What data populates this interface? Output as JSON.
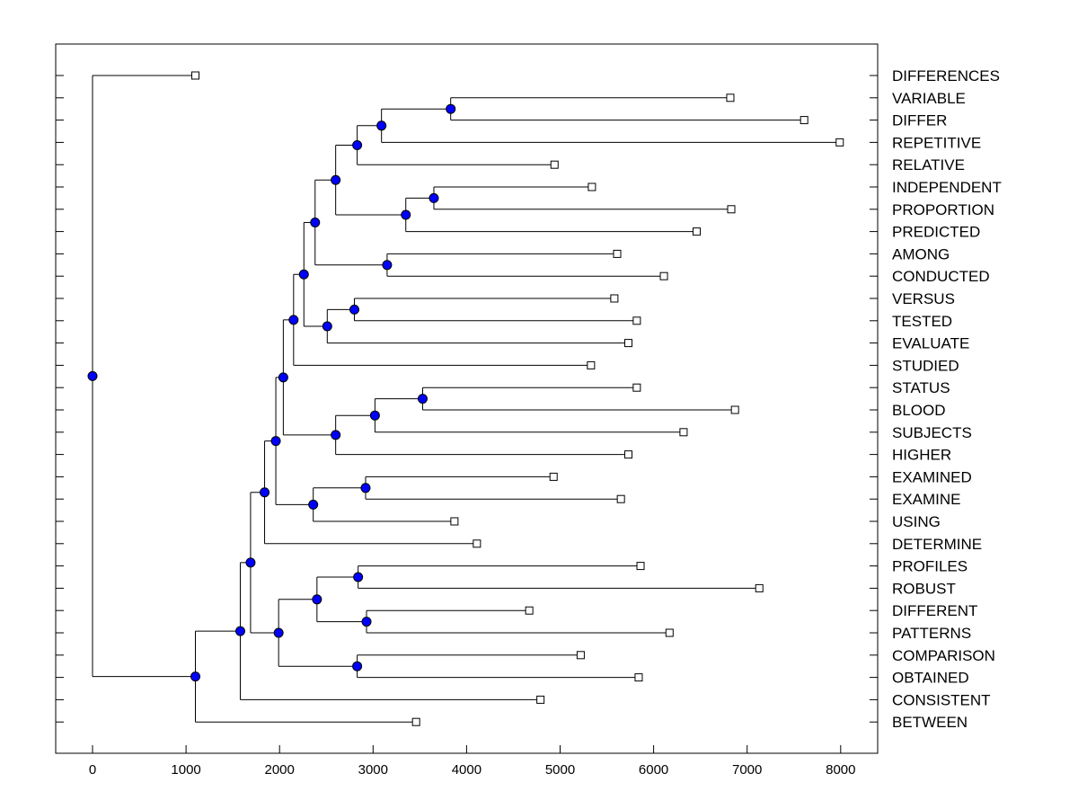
{
  "chart_data": {
    "type": "dendrogram",
    "xlim": [
      -400,
      8400
    ],
    "x_ticks": [
      0,
      1000,
      2000,
      3000,
      4000,
      5000,
      6000,
      7000,
      8000
    ],
    "grid": false,
    "colors": {
      "node": "#0000ff",
      "line": "#000000",
      "leaf_fill": "#ffffff"
    },
    "leaves": [
      {
        "label": "DIFFERENCES",
        "x": 1100
      },
      {
        "label": "VARIABLE",
        "x": 6820
      },
      {
        "label": "DIFFER",
        "x": 7610
      },
      {
        "label": "REPETITIVE",
        "x": 7990
      },
      {
        "label": "RELATIVE",
        "x": 4940
      },
      {
        "label": "INDEPENDENT",
        "x": 5340
      },
      {
        "label": "PROPORTION",
        "x": 6830
      },
      {
        "label": "PREDICTED",
        "x": 6460
      },
      {
        "label": "AMONG",
        "x": 5610
      },
      {
        "label": "CONDUCTED",
        "x": 6110
      },
      {
        "label": "VERSUS",
        "x": 5580
      },
      {
        "label": "TESTED",
        "x": 5820
      },
      {
        "label": "EVALUATE",
        "x": 5730
      },
      {
        "label": "STUDIED",
        "x": 5330
      },
      {
        "label": "STATUS",
        "x": 5820
      },
      {
        "label": "BLOOD",
        "x": 6870
      },
      {
        "label": "SUBJECTS",
        "x": 6320
      },
      {
        "label": "HIGHER",
        "x": 5730
      },
      {
        "label": "EXAMINED",
        "x": 4930
      },
      {
        "label": "EXAMINE",
        "x": 5650
      },
      {
        "label": "USING",
        "x": 3870
      },
      {
        "label": "DETERMINE",
        "x": 4110
      },
      {
        "label": "PROFILES",
        "x": 5860
      },
      {
        "label": "ROBUST",
        "x": 7130
      },
      {
        "label": "DIFFERENT",
        "x": 4670
      },
      {
        "label": "PATTERNS",
        "x": 6170
      },
      {
        "label": "COMPARISON",
        "x": 5220
      },
      {
        "label": "OBTAINED",
        "x": 5840
      },
      {
        "label": "CONSISTENT",
        "x": 4790
      },
      {
        "label": "BETWEEN",
        "x": 3460
      }
    ],
    "merges": [
      {
        "id": "n1",
        "x": 3830,
        "children": [
          "VARIABLE",
          "DIFFER"
        ]
      },
      {
        "id": "n2",
        "x": 3090,
        "children": [
          "n1",
          "REPETITIVE"
        ]
      },
      {
        "id": "n3",
        "x": 2830,
        "children": [
          "n2",
          "RELATIVE"
        ]
      },
      {
        "id": "n4",
        "x": 3650,
        "children": [
          "INDEPENDENT",
          "PROPORTION"
        ]
      },
      {
        "id": "n5",
        "x": 3350,
        "children": [
          "n4",
          "PREDICTED"
        ]
      },
      {
        "id": "n6",
        "x": 2600,
        "children": [
          "n3",
          "n5"
        ]
      },
      {
        "id": "n7",
        "x": 3150,
        "children": [
          "AMONG",
          "CONDUCTED"
        ]
      },
      {
        "id": "n8",
        "x": 2380,
        "children": [
          "n6",
          "n7"
        ]
      },
      {
        "id": "n9",
        "x": 2800,
        "children": [
          "VERSUS",
          "TESTED"
        ]
      },
      {
        "id": "n10",
        "x": 2510,
        "children": [
          "n9",
          "EVALUATE"
        ]
      },
      {
        "id": "n11",
        "x": 2260,
        "children": [
          "n8",
          "n10"
        ]
      },
      {
        "id": "n12",
        "x": 2150,
        "children": [
          "n11",
          "STUDIED"
        ]
      },
      {
        "id": "n13",
        "x": 3530,
        "children": [
          "STATUS",
          "BLOOD"
        ]
      },
      {
        "id": "n14",
        "x": 3020,
        "children": [
          "n13",
          "SUBJECTS"
        ]
      },
      {
        "id": "n15",
        "x": 2600,
        "children": [
          "n14",
          "HIGHER"
        ]
      },
      {
        "id": "n16",
        "x": 2040,
        "children": [
          "n12",
          "n15"
        ]
      },
      {
        "id": "n17",
        "x": 2920,
        "children": [
          "EXAMINED",
          "EXAMINE"
        ]
      },
      {
        "id": "n18",
        "x": 2360,
        "children": [
          "n17",
          "USING"
        ]
      },
      {
        "id": "n19",
        "x": 1960,
        "children": [
          "n16",
          "n18"
        ]
      },
      {
        "id": "n20",
        "x": 1840,
        "children": [
          "n19",
          "DETERMINE"
        ]
      },
      {
        "id": "n21",
        "x": 2840,
        "children": [
          "PROFILES",
          "ROBUST"
        ]
      },
      {
        "id": "n22",
        "x": 2930,
        "children": [
          "DIFFERENT",
          "PATTERNS"
        ]
      },
      {
        "id": "n23",
        "x": 2400,
        "children": [
          "n21",
          "n22"
        ]
      },
      {
        "id": "n24",
        "x": 2830,
        "children": [
          "COMPARISON",
          "OBTAINED"
        ]
      },
      {
        "id": "n25",
        "x": 1990,
        "children": [
          "n23",
          "n24"
        ]
      },
      {
        "id": "n26",
        "x": 1690,
        "children": [
          "n20",
          "n25"
        ]
      },
      {
        "id": "n27",
        "x": 1580,
        "children": [
          "n26",
          "CONSISTENT"
        ]
      },
      {
        "id": "n28",
        "x": 1100,
        "children": [
          "n27",
          "BETWEEN"
        ]
      },
      {
        "id": "n29",
        "x": 0,
        "children": [
          "DIFFERENCES",
          "n28"
        ]
      }
    ]
  }
}
